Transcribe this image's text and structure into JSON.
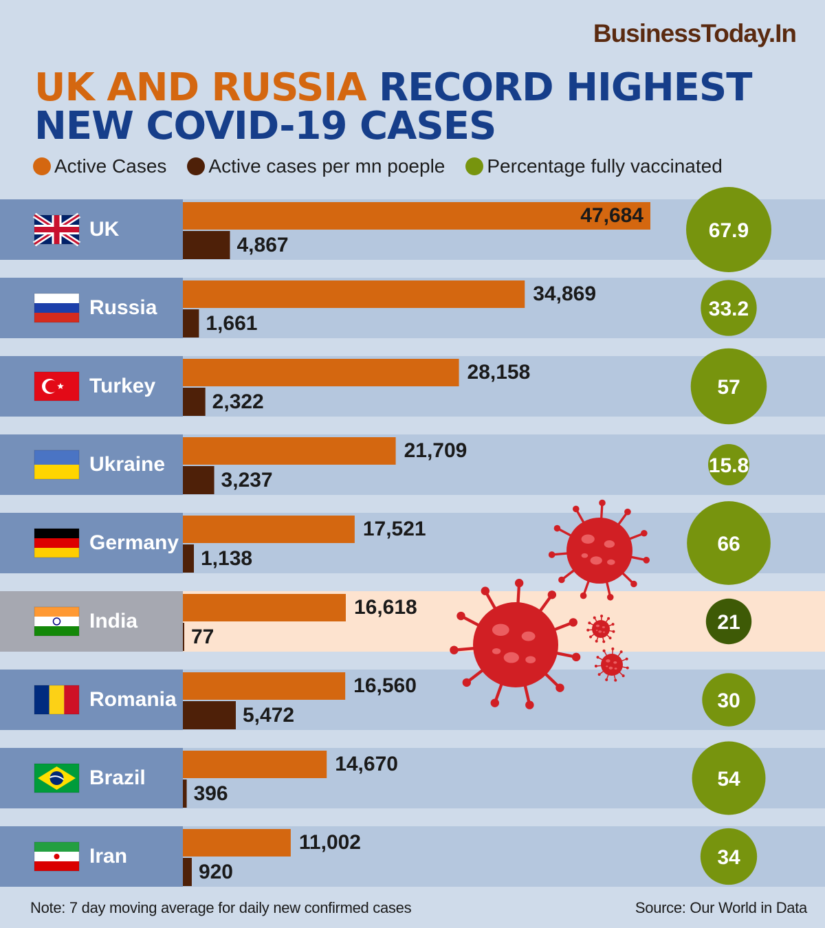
{
  "brand": "BusinessToday.In",
  "title": {
    "highlight": "UK AND RUSSIA",
    "rest": " RECORD HIGHEST NEW COVID-19 CASES"
  },
  "legend": [
    {
      "label": "Active Cases",
      "color": "#d46710"
    },
    {
      "label": "Active cases per mn poeple",
      "color": "#4e2008"
    },
    {
      "label": "Percentage fully vaccinated",
      "color": "#77940e"
    }
  ],
  "colors": {
    "active": "#d46710",
    "per_mn": "#4e2008",
    "vaccinated": "#77940e",
    "vaccinated_highlight": "#3e5a06",
    "virus": "#d11f24"
  },
  "chart_data": {
    "type": "bar",
    "categories": [
      "UK",
      "Russia",
      "Turkey",
      "Ukraine",
      "Germany",
      "India",
      "Romania",
      "Brazil",
      "Iran"
    ],
    "highlight_category": "India",
    "series": [
      {
        "name": "Active Cases",
        "values": [
          47684,
          34869,
          28158,
          21709,
          17521,
          16618,
          16560,
          14670,
          11002
        ]
      },
      {
        "name": "Active cases per mn poeple",
        "values": [
          4867,
          1661,
          2322,
          3237,
          1138,
          77,
          5472,
          396,
          920
        ]
      },
      {
        "name": "Percentage fully vaccinated",
        "values": [
          67.9,
          33.2,
          57,
          15.8,
          66,
          21,
          30,
          54,
          34
        ]
      }
    ],
    "labels": {
      "active": [
        "47,684",
        "34,869",
        "28,158",
        "21,709",
        "17,521",
        "16,618",
        "16,560",
        "14,670",
        "11,002"
      ],
      "per_mn": [
        "4,867",
        "1,661",
        "2,322",
        "3,237",
        "1,138",
        "77",
        "5,472",
        "396",
        "920"
      ],
      "vaccinated": [
        "67.9",
        "33.2",
        "57",
        "15.8",
        "66",
        "21",
        "30",
        "54",
        "34"
      ]
    },
    "flags": [
      "uk-flag-icon",
      "russia-flag-icon",
      "turkey-flag-icon",
      "ukraine-flag-icon",
      "germany-flag-icon",
      "india-flag-icon",
      "romania-flag-icon",
      "brazil-flag-icon",
      "iran-flag-icon"
    ]
  },
  "footer": {
    "note": "Note: 7 day moving average for daily new confirmed cases",
    "source": "Source: Our World in Data"
  }
}
